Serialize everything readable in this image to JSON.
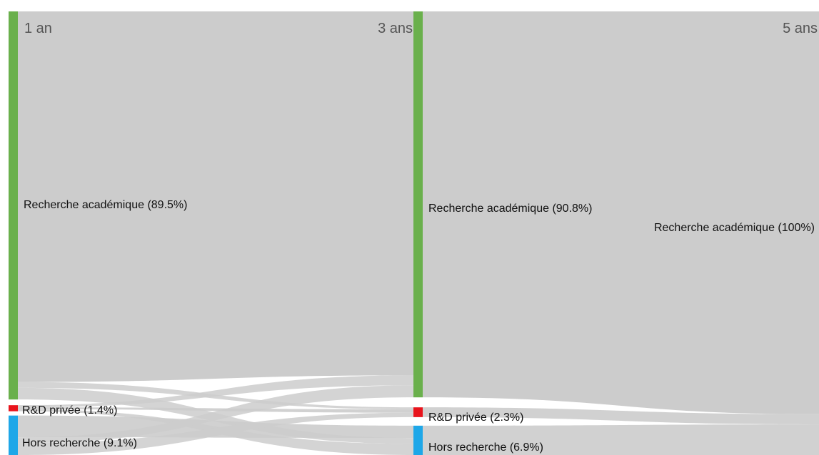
{
  "chart_data": {
    "type": "sankey",
    "stages": [
      {
        "label": "1 an",
        "nodes": [
          {
            "name": "Recherche académique",
            "value_label": "(89.5%)",
            "value": 89.5,
            "color": "#6ab04c"
          },
          {
            "name": "R&D privée",
            "value_label": "(1.4%)",
            "value": 1.4,
            "color": "#e8141c"
          },
          {
            "name": "Hors recherche",
            "value_label": "(9.1%)",
            "value": 9.1,
            "color": "#1ea7e8"
          }
        ]
      },
      {
        "label": "3 ans",
        "nodes": [
          {
            "name": "Recherche académique",
            "value_label": "(90.8%)",
            "value": 90.8,
            "color": "#6ab04c"
          },
          {
            "name": "R&D privée",
            "value_label": "(2.3%)",
            "value": 2.3,
            "color": "#e8141c"
          },
          {
            "name": "Hors recherche",
            "value_label": "(6.9%)",
            "value": 6.9,
            "color": "#1ea7e8"
          }
        ]
      },
      {
        "label": "5 ans",
        "nodes": [
          {
            "name": "Recherche académique",
            "value_label": "(100%)",
            "value": 100,
            "color": "#6ab04c"
          }
        ]
      }
    ],
    "link_color": "#cccccc"
  }
}
